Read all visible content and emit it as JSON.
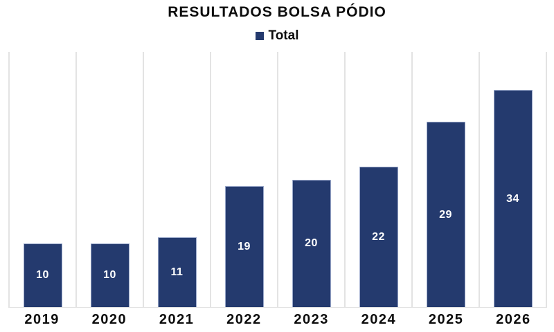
{
  "chart_data": {
    "type": "bar",
    "title": "RESULTADOS BOLSA PÓDIO",
    "categories": [
      "2019",
      "2020",
      "2021",
      "2022",
      "2023",
      "2024",
      "2025",
      "2026"
    ],
    "series": [
      {
        "name": "Total",
        "values": [
          10,
          10,
          11,
          19,
          20,
          22,
          29,
          34
        ]
      }
    ],
    "xlabel": "",
    "ylabel": "",
    "ylim": [
      0,
      40
    ],
    "grid": "vertical-category-separators",
    "legend_position": "top-center",
    "data_labels": "inside-center",
    "colors": {
      "bar": "#243A6E",
      "bar_border": "#9AA8CA",
      "gridline": "#E3E3E3",
      "text": "#0D0D0D",
      "value_label": "#FFFFFF"
    }
  }
}
